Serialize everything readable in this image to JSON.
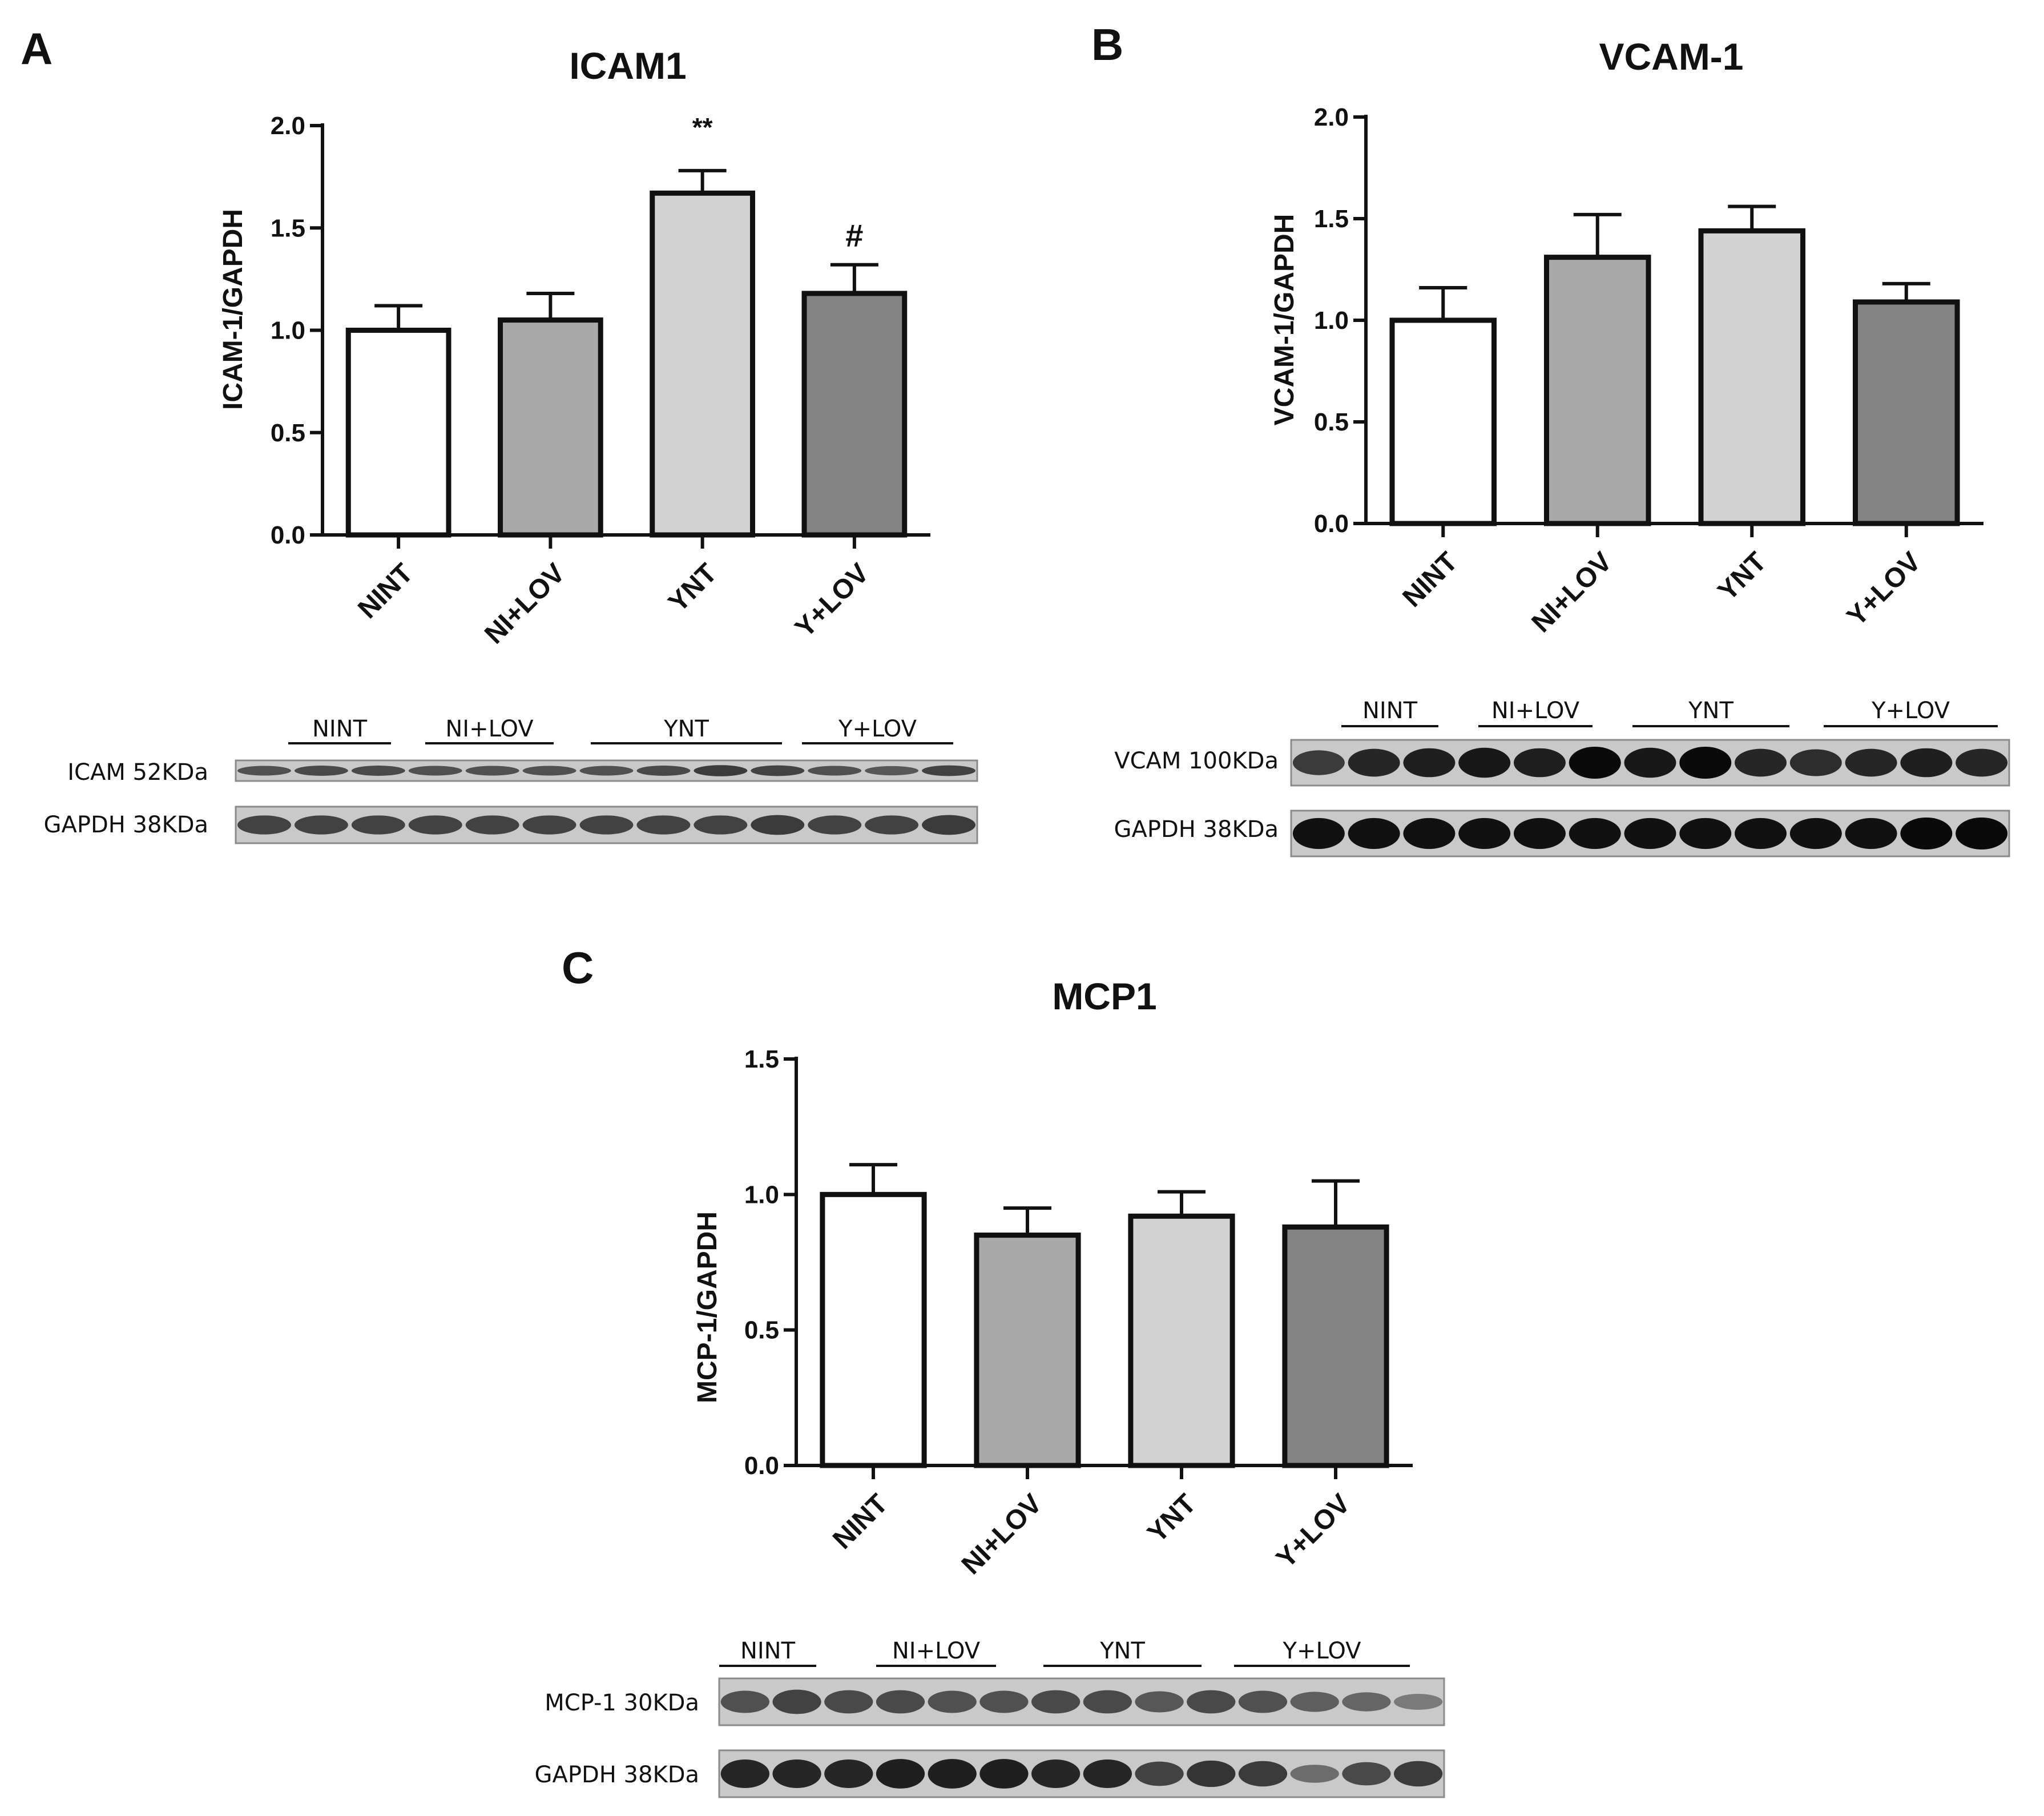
{
  "panels": [
    {
      "letter": "A",
      "chart_data": {
        "type": "bar",
        "title": "ICAM1",
        "ylabel": "ICAM-1/GAPDH",
        "xlabel": "",
        "categories": [
          "NINT",
          "NI+LOV",
          "YNT",
          "Y+LOV"
        ],
        "values": [
          1.0,
          1.05,
          1.67,
          1.18
        ],
        "errors": [
          0.12,
          0.13,
          0.11,
          0.14
        ],
        "bar_colors": [
          "#ffffff",
          "#a9a9a9",
          "#d3d3d3",
          "#838383"
        ],
        "annotations": [
          "",
          "",
          "**",
          "#"
        ],
        "ylim": [
          0,
          2.0
        ],
        "yticks": [
          0.0,
          0.5,
          1.0,
          1.5,
          2.0
        ],
        "ytick_labels": [
          "0.0",
          "0.5",
          "1.0",
          "1.5",
          "2.0"
        ],
        "grid": false
      },
      "blot": {
        "group_labels": [
          "NINT",
          "NI+LOV",
          "YNT",
          "Y+LOV"
        ],
        "rows": [
          {
            "label": "ICAM 52KDa",
            "bands": [
              0.5,
              0.55,
              0.55,
              0.5,
              0.5,
              0.5,
              0.5,
              0.55,
              0.65,
              0.6,
              0.5,
              0.45,
              0.6
            ]
          },
          {
            "label": "GAPDH 38KDa",
            "bands": [
              0.6,
              0.6,
              0.6,
              0.6,
              0.6,
              0.6,
              0.6,
              0.6,
              0.6,
              0.65,
              0.6,
              0.6,
              0.65
            ]
          }
        ]
      }
    },
    {
      "letter": "B",
      "chart_data": {
        "type": "bar",
        "title": "VCAM-1",
        "ylabel": "VCAM-1/GAPDH",
        "xlabel": "",
        "categories": [
          "NINT",
          "NI+LOV",
          "YNT",
          "Y+LOV"
        ],
        "values": [
          1.0,
          1.31,
          1.44,
          1.09
        ],
        "errors": [
          0.16,
          0.21,
          0.12,
          0.09
        ],
        "bar_colors": [
          "#ffffff",
          "#a9a9a9",
          "#d3d3d3",
          "#838383"
        ],
        "annotations": [
          "",
          "",
          "",
          ""
        ],
        "ylim": [
          0,
          2.0
        ],
        "yticks": [
          0.0,
          0.5,
          1.0,
          1.5,
          2.0
        ],
        "ytick_labels": [
          "0.0",
          "0.5",
          "1.0",
          "1.5",
          "2.0"
        ],
        "grid": false
      },
      "blot": {
        "group_labels": [
          "NINT",
          "NI+LOV",
          "YNT",
          "Y+LOV"
        ],
        "rows": [
          {
            "label": "VCAM 100KDa",
            "bands": [
              0.65,
              0.8,
              0.85,
              0.9,
              0.85,
              1.0,
              0.9,
              1.0,
              0.8,
              0.75,
              0.8,
              0.85,
              0.8
            ]
          },
          {
            "label": "GAPDH 38KDa",
            "bands": [
              0.95,
              0.95,
              0.95,
              0.95,
              0.95,
              0.95,
              0.95,
              0.95,
              0.95,
              0.95,
              0.95,
              1.0,
              1.0
            ]
          }
        ]
      }
    },
    {
      "letter": "C",
      "chart_data": {
        "type": "bar",
        "title": "MCP1",
        "ylabel": "MCP-1/GAPDH",
        "xlabel": "",
        "categories": [
          "NINT",
          "NI+LOV",
          "YNT",
          "Y+LOV"
        ],
        "values": [
          1.0,
          0.85,
          0.92,
          0.88
        ],
        "errors": [
          0.11,
          0.1,
          0.09,
          0.17
        ],
        "bar_colors": [
          "#ffffff",
          "#a9a9a9",
          "#d3d3d3",
          "#838383"
        ],
        "annotations": [
          "",
          "",
          "",
          ""
        ],
        "ylim": [
          0,
          1.5
        ],
        "yticks": [
          0.0,
          0.5,
          1.0,
          1.5
        ],
        "ytick_labels": [
          "0.0",
          "0.5",
          "1.0",
          "1.5"
        ],
        "grid": false
      },
      "blot": {
        "group_labels": [
          "NINT",
          "NI+LOV",
          "YNT",
          "Y+LOV"
        ],
        "rows": [
          {
            "label": "MCP-1  30KDa",
            "bands": [
              0.5,
              0.6,
              0.55,
              0.55,
              0.5,
              0.5,
              0.55,
              0.55,
              0.45,
              0.55,
              0.5,
              0.4,
              0.35,
              0.2
            ]
          },
          {
            "label": "GAPDH 38KDa",
            "bands": [
              0.8,
              0.8,
              0.8,
              0.85,
              0.85,
              0.85,
              0.8,
              0.8,
              0.6,
              0.7,
              0.65,
              0.3,
              0.55,
              0.65
            ]
          }
        ]
      }
    }
  ]
}
